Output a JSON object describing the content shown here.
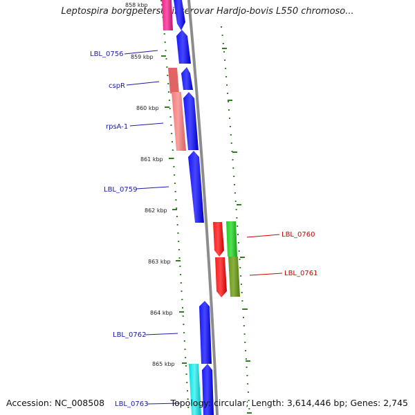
{
  "title": "Leptospira borgpetersenii serovar Hardjo-bovis L550 chromoso...",
  "footer": {
    "accession_label": "Accession:",
    "accession": "NC_008508",
    "topology_label": "Topology:",
    "topology": "circular",
    "length_label": "Length:",
    "length": "3,614,446 bp",
    "genes_label": "Genes:",
    "genes": "2,745"
  },
  "ticks": [
    {
      "label": "858 kbp"
    },
    {
      "label": "859 kbp"
    },
    {
      "label": "860 kbp"
    },
    {
      "label": "861 kbp"
    },
    {
      "label": "862 kbp"
    },
    {
      "label": "863 kbp"
    },
    {
      "label": "864 kbp"
    },
    {
      "label": "865 kbp"
    }
  ],
  "gene_labels": [
    {
      "label": "LBL_0756",
      "color": "#1a1aa8"
    },
    {
      "label": "cspR",
      "color": "#1a1aa8"
    },
    {
      "label": "rpsA-1",
      "color": "#1a1aa8"
    },
    {
      "label": "LBL_0759",
      "color": "#1a1aa8"
    },
    {
      "label": "LBL_0760",
      "color": "#cc0000"
    },
    {
      "label": "LBL_0761",
      "color": "#cc0000"
    },
    {
      "label": "LBL_0762",
      "color": "#1a1aa8"
    },
    {
      "label": "LBL_0763",
      "color": "#1a1aa8"
    }
  ],
  "colors": {
    "backbone": "#8c8c8c",
    "tick": "#2e7d1e",
    "forward_cds": "#0a0aee",
    "reverse_cds": "#ee0000",
    "magenta": "#ee2a9a",
    "salmon": "#f08080",
    "green": "#22cc22",
    "olive": "#6b9a20",
    "cyan": "#00e8e8"
  }
}
